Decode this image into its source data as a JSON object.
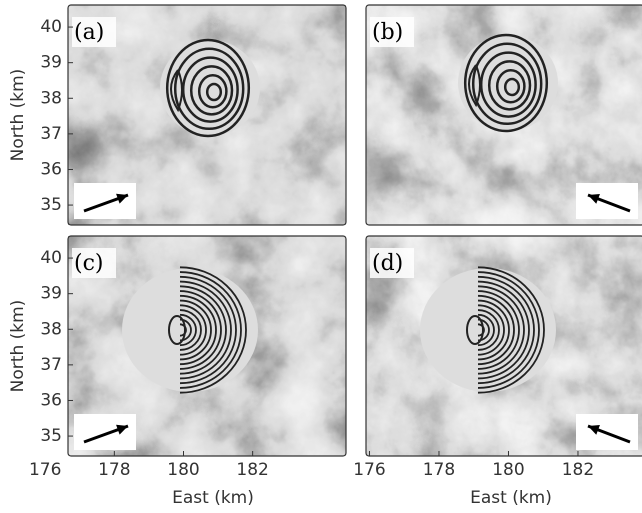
{
  "chart_data": [
    {
      "type": "image",
      "panel_label": "(a)",
      "ylabel": "North (km)",
      "ylim": [
        34.44,
        40.62
      ],
      "yticks": [
        35,
        36,
        37,
        38,
        39,
        40
      ]
    },
    {
      "type": "image",
      "panel_label": "(b)"
    },
    {
      "type": "image",
      "panel_label": "(c)",
      "ylabel": "North (km)",
      "ylim": [
        34.44,
        40.62
      ],
      "yticks": [
        35,
        36,
        37,
        38,
        39,
        40
      ],
      "xlabel": "East (km)",
      "xlim": [
        176.66,
        184.7
      ],
      "xticks": [
        176,
        178,
        180,
        182
      ]
    },
    {
      "type": "image",
      "panel_label": "(d)",
      "xlabel": "East (km)",
      "xlim": [
        175.9,
        183.9
      ],
      "xticks": [
        176,
        178,
        180,
        182
      ]
    }
  ]
}
